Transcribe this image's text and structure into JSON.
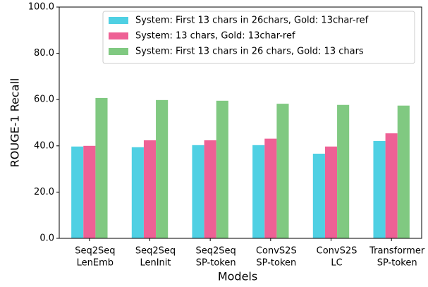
{
  "chart_data": {
    "type": "bar",
    "xlabel": "Models",
    "ylabel": "ROUGE-1 Recall",
    "categories": [
      [
        "Seq2Seq",
        "LenEmb"
      ],
      [
        "Seq2Seq",
        "LenInit"
      ],
      [
        "Seq2Seq",
        "SP-token"
      ],
      [
        "ConvS2S",
        "SP-token"
      ],
      [
        "ConvS2S",
        "LC"
      ],
      [
        "Transformer",
        "SP-token"
      ]
    ],
    "series": [
      {
        "name": "System: First 13 chars in 26chars, Gold: 13char-ref",
        "color": "#4fd0e3",
        "values": [
          39.7,
          39.4,
          40.3,
          40.3,
          36.6,
          42.1
        ]
      },
      {
        "name": "System: 13 chars, Gold: 13char-ref",
        "color": "#ee6195",
        "values": [
          40.0,
          42.4,
          42.4,
          43.1,
          39.7,
          45.4
        ]
      },
      {
        "name": "System: First 13 chars in 26 chars, Gold: 13 chars",
        "color": "#80c981",
        "values": [
          60.7,
          59.8,
          59.5,
          58.2,
          57.7,
          57.4
        ]
      }
    ],
    "ylim": [
      0,
      100
    ],
    "yticks": [
      {
        "value": 0,
        "label": "0.0"
      },
      {
        "value": 20,
        "label": "20.0"
      },
      {
        "value": 40,
        "label": "40.0"
      },
      {
        "value": 60,
        "label": "60.0"
      },
      {
        "value": 80,
        "label": "80.0"
      },
      {
        "value": 100,
        "label": "100.0"
      }
    ],
    "legend": "upper right"
  }
}
